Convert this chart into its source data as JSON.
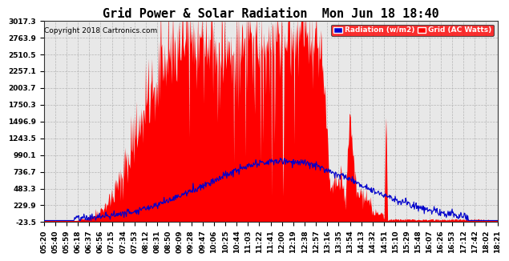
{
  "title": "Grid Power & Solar Radiation  Mon Jun 18 18:40",
  "copyright": "Copyright 2018 Cartronics.com",
  "legend_labels": [
    "Radiation (w/m2)",
    "Grid (AC Watts)"
  ],
  "legend_colors_legend": [
    "#0000cd",
    "#ff0000"
  ],
  "yticks": [
    -23.5,
    229.9,
    483.3,
    736.7,
    990.1,
    1243.5,
    1496.9,
    1750.3,
    2003.7,
    2257.1,
    2510.5,
    2763.9,
    3017.3
  ],
  "ymin": -23.5,
  "ymax": 3017.3,
  "bg_color": "#ffffff",
  "plot_bg_color": "#e8e8e8",
  "grid_color": "#b0b0b0",
  "title_fontsize": 11,
  "tick_fontsize": 6.5,
  "x_tick_labels": [
    "05:20",
    "05:40",
    "05:59",
    "06:18",
    "06:37",
    "06:56",
    "07:15",
    "07:34",
    "07:53",
    "08:12",
    "08:31",
    "08:50",
    "09:09",
    "09:28",
    "09:47",
    "10:06",
    "10:25",
    "10:44",
    "11:03",
    "11:22",
    "11:41",
    "12:00",
    "12:19",
    "12:38",
    "12:57",
    "13:16",
    "13:35",
    "13:54",
    "14:13",
    "14:32",
    "14:51",
    "15:10",
    "15:29",
    "15:48",
    "16:07",
    "16:26",
    "16:53",
    "17:12",
    "17:42",
    "18:02",
    "18:21"
  ]
}
